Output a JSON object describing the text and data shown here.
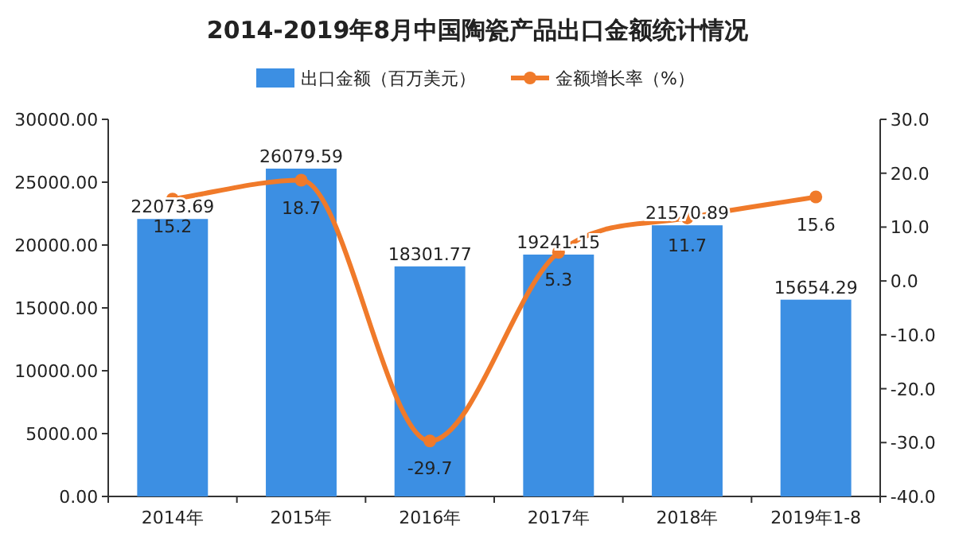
{
  "chart_data": {
    "type": "bar",
    "title": "2014-2019年8月中国陶瓷产品出口金额统计情况",
    "categories": [
      "2014年",
      "2015年",
      "2016年",
      "2017年",
      "2018年",
      "2019年1-8"
    ],
    "series": [
      {
        "name": "出口金额（百万美元）",
        "color": "#3c8fe3",
        "values": [
          22073.69,
          26079.59,
          18301.77,
          19241.15,
          21570.89,
          15654.29
        ]
      },
      {
        "name": "金额增长率（%）",
        "type": "line",
        "axis": "y2",
        "color": "#f07a2a",
        "values": [
          15.2,
          18.7,
          -29.7,
          5.3,
          11.7,
          15.6
        ]
      }
    ],
    "ylim": [
      0,
      30000
    ],
    "yticks": [
      {
        "value": 0,
        "label": "0.00"
      },
      {
        "value": 5000,
        "label": "5000.00"
      },
      {
        "value": 10000,
        "label": "10000.00"
      },
      {
        "value": 15000,
        "label": "15000.00"
      },
      {
        "value": 20000,
        "label": "20000.00"
      },
      {
        "value": 25000,
        "label": "25000.00"
      },
      {
        "value": 30000,
        "label": "30000.00"
      }
    ],
    "y2lim": [
      -40,
      30
    ],
    "y2ticks": [
      {
        "value": -40,
        "label": "-40.0"
      },
      {
        "value": -30,
        "label": "-30.0"
      },
      {
        "value": -20,
        "label": "-20.0"
      },
      {
        "value": -10,
        "label": "-10.0"
      },
      {
        "value": 0,
        "label": "0.0"
      },
      {
        "value": 10,
        "label": "10.0"
      },
      {
        "value": 20,
        "label": "20.0"
      },
      {
        "value": 30,
        "label": "30.0"
      }
    ],
    "marker": "circle",
    "data_labels": true,
    "legend": "top",
    "grid": false
  }
}
